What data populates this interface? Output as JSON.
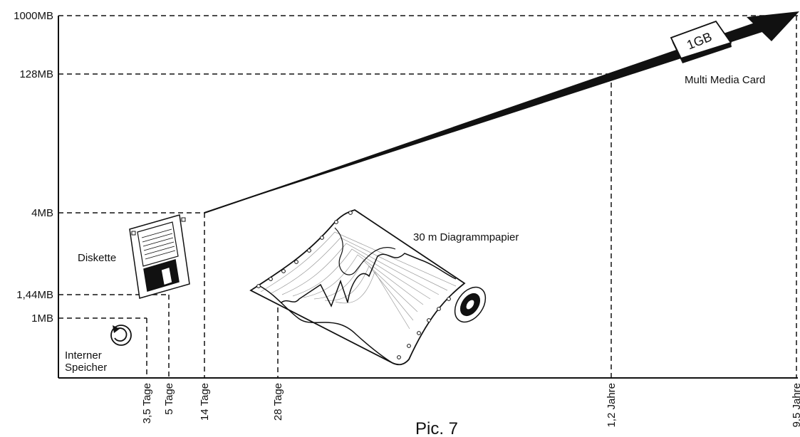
{
  "colors": {
    "ink": "#111111",
    "paper": "#ffffff",
    "paper_lines": "#9a9a9a"
  },
  "y_axis": {
    "ticks": [
      "1000MB",
      "128MB",
      "4MB",
      "1,44MB",
      "1MB"
    ]
  },
  "x_axis": {
    "ticks": [
      "3,5 Tage",
      "5 Tage",
      "14 Tage",
      "28 Tage",
      "1,2 Jahre",
      "9,5 Jahre"
    ]
  },
  "annotations": {
    "internal": [
      "Interner",
      "Speicher"
    ],
    "floppy": "Diskette",
    "paper": "30 m Diagrammpapier",
    "mmc": "Multi Media Card",
    "mmc_chip": "1GB"
  },
  "icons": [
    "refresh-icon",
    "floppy-disk-icon",
    "chart-paper-roll-icon",
    "memory-card-icon",
    "growth-arrow"
  ],
  "caption": "Pic. 7"
}
